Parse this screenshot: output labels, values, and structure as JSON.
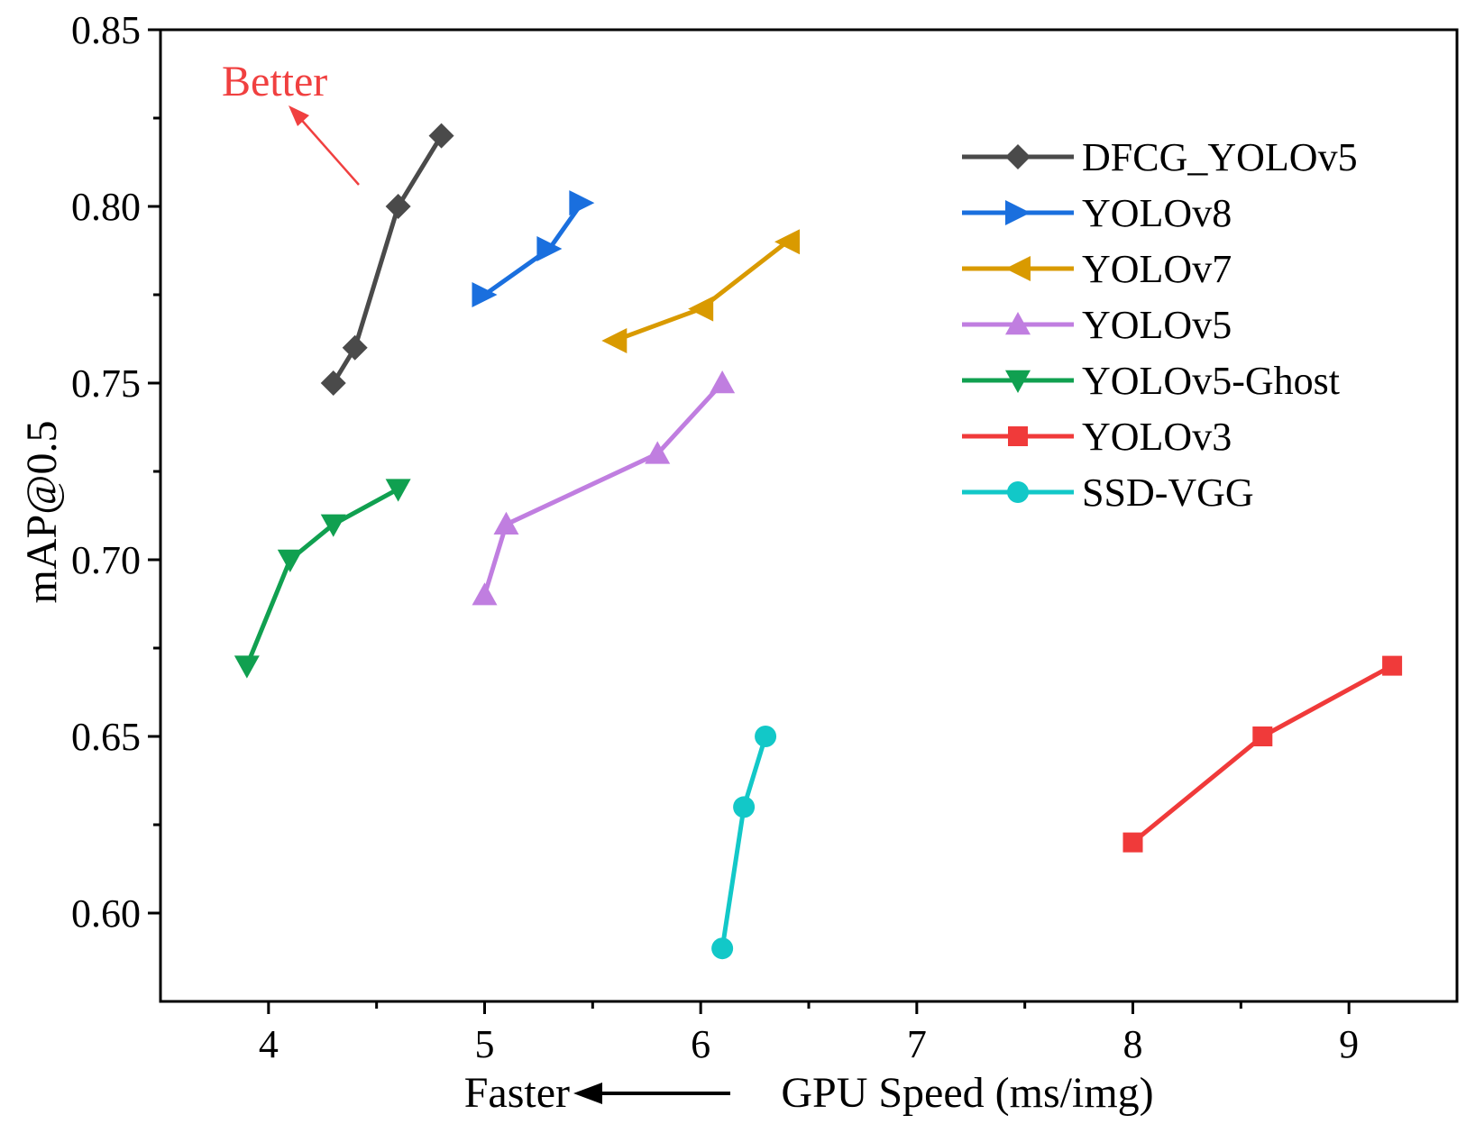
{
  "chart_data": {
    "type": "line",
    "title": "",
    "xlabel": "GPU Speed (ms/img)",
    "ylabel": "mAP@0.5",
    "xlim": [
      3.5,
      9.5
    ],
    "ylim": [
      0.575,
      0.85
    ],
    "x_ticks": [
      4,
      5,
      6,
      7,
      8,
      9
    ],
    "x_tick_labels": [
      "4",
      "5",
      "6",
      "7",
      "8",
      "9"
    ],
    "y_ticks": [
      0.6,
      0.65,
      0.7,
      0.75,
      0.8,
      0.85
    ],
    "y_tick_labels": [
      "0.60",
      "0.65",
      "0.70",
      "0.75",
      "0.80",
      "0.85"
    ],
    "grid": false,
    "legend_position": "top-right",
    "annotations": {
      "better": "Better",
      "faster": "Faster",
      "better_color": "#f04040"
    },
    "series": [
      {
        "name": "DFCG_YOLOv5",
        "color": "#4a4a4a",
        "marker": "diamond",
        "x": [
          4.3,
          4.4,
          4.6,
          4.8
        ],
        "y": [
          0.75,
          0.76,
          0.8,
          0.82
        ]
      },
      {
        "name": "YOLOv8",
        "color": "#1a6fde",
        "marker": "triangle-right",
        "x": [
          5.0,
          5.3,
          5.45
        ],
        "y": [
          0.775,
          0.788,
          0.801
        ]
      },
      {
        "name": "YOLOv7",
        "color": "#d99a00",
        "marker": "triangle-left",
        "x": [
          5.6,
          6.0,
          6.4
        ],
        "y": [
          0.762,
          0.771,
          0.79
        ]
      },
      {
        "name": "YOLOv5",
        "color": "#c07ee0",
        "marker": "triangle-up",
        "x": [
          5.0,
          5.1,
          5.8,
          6.1
        ],
        "y": [
          0.69,
          0.71,
          0.73,
          0.75
        ]
      },
      {
        "name": "YOLOv5-Ghost",
        "color": "#10a050",
        "marker": "triangle-down",
        "x": [
          3.9,
          4.1,
          4.3,
          4.6
        ],
        "y": [
          0.67,
          0.7,
          0.71,
          0.72
        ]
      },
      {
        "name": "YOLOv3",
        "color": "#f03a3a",
        "marker": "square",
        "x": [
          8.0,
          8.6,
          9.2
        ],
        "y": [
          0.62,
          0.65,
          0.67
        ]
      },
      {
        "name": "SSD-VGG",
        "color": "#12c8c8",
        "marker": "circle",
        "x": [
          6.1,
          6.2,
          6.3
        ],
        "y": [
          0.59,
          0.63,
          0.65
        ]
      }
    ]
  }
}
